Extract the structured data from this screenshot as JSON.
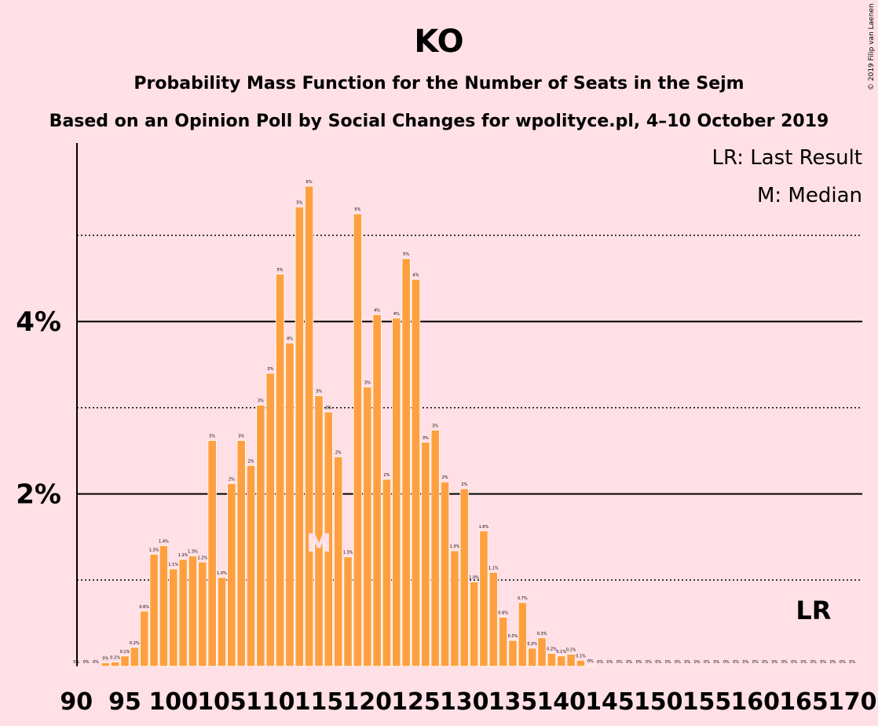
{
  "title": "KO",
  "subtitle": "Probability Mass Function for the Number of Seats in the Sejm",
  "subtitle2": "Based on an Opinion Poll by Social Changes for wpolityce.pl, 4–10 October 2019",
  "credit": "© 2019 Filip van Laenen",
  "legend": {
    "lr": "LR: Last Result",
    "m": "M: Median"
  },
  "markers": {
    "median_label": "M",
    "median_seat": 115,
    "last_result_label": "LR",
    "last_result_seat": 166
  },
  "colors": {
    "background": "#ffe0e6",
    "bar": "#ffa040",
    "bar_stroke": "#ffffff"
  },
  "chart_data": {
    "type": "bar",
    "title": "KO",
    "xlabel": "",
    "ylabel": "",
    "x_tick_labels": [
      "90",
      "95",
      "100",
      "105",
      "110",
      "115",
      "120",
      "125",
      "130",
      "135",
      "140",
      "145",
      "150",
      "155",
      "160",
      "165",
      "170"
    ],
    "y_tick_labels": [
      "2%",
      "4%"
    ],
    "ylim": [
      0,
      6
    ],
    "grid": "solid at 2% and 4%, dotted at 1%, 3%, 5%",
    "legend_placement": "top-right",
    "x": [
      90,
      91,
      92,
      93,
      94,
      95,
      96,
      97,
      98,
      99,
      100,
      101,
      102,
      103,
      104,
      105,
      106,
      107,
      108,
      109,
      110,
      111,
      112,
      113,
      114,
      115,
      116,
      117,
      118,
      119,
      120,
      121,
      122,
      123,
      124,
      125,
      126,
      127,
      128,
      129,
      130,
      131,
      132,
      133,
      134,
      135,
      136,
      137,
      138,
      139,
      140,
      141,
      142,
      143,
      144,
      145,
      146,
      147,
      148,
      149,
      150,
      151,
      152,
      153,
      154,
      155,
      156,
      157,
      158,
      159,
      160,
      161,
      162,
      163,
      164,
      165,
      166,
      167,
      168,
      169,
      170
    ],
    "values": [
      0,
      0,
      0,
      0.04,
      0.05,
      0.12,
      0.22,
      0.64,
      1.3,
      1.4,
      1.13,
      1.24,
      1.28,
      1.21,
      2.62,
      1.03,
      2.12,
      2.62,
      2.33,
      3.03,
      3.4,
      4.55,
      3.75,
      5.33,
      5.57,
      3.14,
      2.95,
      2.43,
      1.27,
      5.25,
      3.24,
      4.08,
      2.17,
      4.04,
      4.73,
      4.49,
      2.6,
      2.74,
      2.14,
      1.34,
      2.06,
      0.98,
      1.57,
      1.09,
      0.57,
      0.3,
      0.74,
      0.21,
      0.33,
      0.15,
      0.12,
      0.14,
      0.07,
      0.01,
      0,
      0,
      0,
      0,
      0,
      0,
      0,
      0,
      0,
      0,
      0,
      0,
      0,
      0,
      0,
      0,
      0,
      0,
      0,
      0,
      0,
      0,
      0,
      0,
      0,
      0,
      0
    ],
    "data_labels": [
      "0%",
      "0%",
      "0%",
      "0%",
      "0.1%",
      "0.1%",
      "0.2%",
      "0.6%",
      "1.3%",
      "1.4%",
      "1.1%",
      "1.2%",
      "1.3%",
      "1.2%",
      "3%",
      "1.0%",
      "2%",
      "3%",
      "2%",
      "3%",
      "3%",
      "5%",
      "4%",
      "5%",
      "6%",
      "3%",
      "3%",
      "2%",
      "1.3%",
      "5%",
      "3%",
      "4%",
      "2%",
      "4%",
      "5%",
      "4%",
      "3%",
      "3%",
      "2%",
      "1.3%",
      "2%",
      "1.0%",
      "1.6%",
      "1.1%",
      "0.6%",
      "0.3%",
      "0.7%",
      "0.2%",
      "0.3%",
      "0.2%",
      "0.1%",
      "0.1%",
      "0.1%",
      "0%",
      "0%",
      "0%",
      "0%",
      "0%",
      "0%",
      "0%",
      "0%",
      "0%",
      "0%",
      "0%",
      "0%",
      "0%",
      "0%",
      "0%",
      "0%",
      "0%",
      "0%",
      "0%",
      "0%",
      "0%",
      "0%",
      "0%",
      "0%",
      "0%",
      "0%",
      "0%",
      "0%"
    ]
  }
}
